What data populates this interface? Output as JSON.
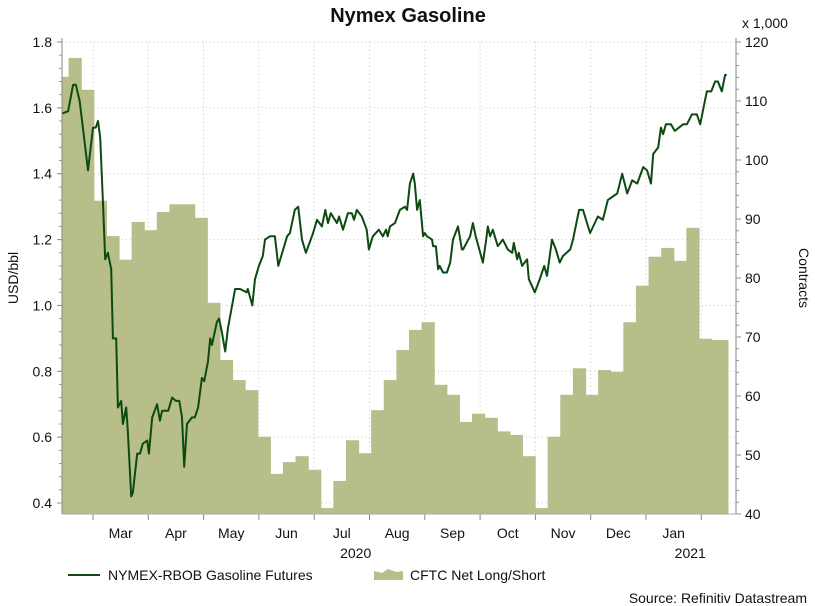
{
  "chart_data": {
    "type": "line+area",
    "title": "Nymex Gasoline",
    "left_axis": {
      "label": "USD/bbl",
      "ylim": [
        0.367,
        1.8
      ],
      "ticks": [
        0.4,
        0.6,
        0.8,
        1.0,
        1.2,
        1.4,
        1.6,
        1.8
      ],
      "tick_labels": [
        "0.4",
        "0.6",
        "0.8",
        "1.0",
        "1.2",
        "1.4",
        "1.6",
        "1.8"
      ]
    },
    "right_axis": {
      "label": "Contracts",
      "multiplier_label": "x 1,000",
      "ylim": [
        40,
        120
      ],
      "ticks": [
        40,
        50,
        60,
        70,
        80,
        90,
        100,
        110,
        120
      ],
      "tick_labels": [
        "40",
        "50",
        "60",
        "70",
        "80",
        "90",
        "100",
        "110",
        "120"
      ]
    },
    "x_axis": {
      "unit": "month index (1 = Mar 2020, 12 = Feb 2021)",
      "xlim": [
        0.44,
        12.48
      ],
      "month_ticks": [
        1,
        2,
        3,
        4,
        5,
        6,
        7,
        8,
        9,
        10,
        11,
        12
      ],
      "month_labels": [
        "Mar",
        "Apr",
        "May",
        "Jun",
        "Jul",
        "Aug",
        "Sep",
        "Oct",
        "Nov",
        "Dec",
        "Jan"
      ],
      "year_labels": [
        "2020",
        "2021"
      ]
    },
    "grid": true,
    "legend_position": "bottom-left",
    "series": [
      {
        "name": "NYMEX-RBOB Gasoline Futures",
        "axis": "left",
        "color": "#0d4a12",
        "points": [
          [
            0.4,
            1.58
          ],
          [
            0.55,
            1.59
          ],
          [
            0.64,
            1.67
          ],
          [
            0.69,
            1.67
          ],
          [
            0.76,
            1.62
          ],
          [
            0.91,
            1.41
          ],
          [
            1.0,
            1.54
          ],
          [
            1.05,
            1.54
          ],
          [
            1.09,
            1.56
          ],
          [
            1.13,
            1.51
          ],
          [
            1.18,
            1.31
          ],
          [
            1.22,
            1.14
          ],
          [
            1.27,
            1.16
          ],
          [
            1.33,
            1.11
          ],
          [
            1.36,
            0.9
          ],
          [
            1.42,
            0.9
          ],
          [
            1.45,
            0.69
          ],
          [
            1.51,
            0.71
          ],
          [
            1.54,
            0.64
          ],
          [
            1.6,
            0.69
          ],
          [
            1.63,
            0.62
          ],
          [
            1.69,
            0.42
          ],
          [
            1.72,
            0.43
          ],
          [
            1.8,
            0.55
          ],
          [
            1.85,
            0.55
          ],
          [
            1.9,
            0.58
          ],
          [
            1.98,
            0.59
          ],
          [
            2.01,
            0.55
          ],
          [
            2.07,
            0.66
          ],
          [
            2.16,
            0.7
          ],
          [
            2.21,
            0.65
          ],
          [
            2.25,
            0.68
          ],
          [
            2.36,
            0.68
          ],
          [
            2.43,
            0.72
          ],
          [
            2.5,
            0.71
          ],
          [
            2.56,
            0.71
          ],
          [
            2.61,
            0.66
          ],
          [
            2.65,
            0.51
          ],
          [
            2.7,
            0.64
          ],
          [
            2.79,
            0.66
          ],
          [
            2.84,
            0.66
          ],
          [
            2.9,
            0.69
          ],
          [
            2.97,
            0.78
          ],
          [
            3.01,
            0.77
          ],
          [
            3.08,
            0.83
          ],
          [
            3.12,
            0.9
          ],
          [
            3.15,
            0.88
          ],
          [
            3.24,
            0.95
          ],
          [
            3.28,
            0.96
          ],
          [
            3.33,
            0.92
          ],
          [
            3.39,
            0.86
          ],
          [
            3.44,
            0.93
          ],
          [
            3.57,
            1.05
          ],
          [
            3.66,
            1.05
          ],
          [
            3.78,
            1.04
          ],
          [
            3.8,
            1.05
          ],
          [
            3.88,
            1.0
          ],
          [
            3.93,
            1.08
          ],
          [
            4.0,
            1.12
          ],
          [
            4.07,
            1.15
          ],
          [
            4.11,
            1.2
          ],
          [
            4.2,
            1.21
          ],
          [
            4.29,
            1.21
          ],
          [
            4.35,
            1.12
          ],
          [
            4.51,
            1.21
          ],
          [
            4.56,
            1.22
          ],
          [
            4.65,
            1.29
          ],
          [
            4.71,
            1.3
          ],
          [
            4.78,
            1.2
          ],
          [
            4.85,
            1.16
          ],
          [
            4.98,
            1.22
          ],
          [
            5.05,
            1.26
          ],
          [
            5.14,
            1.24
          ],
          [
            5.2,
            1.29
          ],
          [
            5.25,
            1.25
          ],
          [
            5.3,
            1.28
          ],
          [
            5.41,
            1.25
          ],
          [
            5.45,
            1.27
          ],
          [
            5.52,
            1.23
          ],
          [
            5.61,
            1.28
          ],
          [
            5.68,
            1.28
          ],
          [
            5.72,
            1.26
          ],
          [
            5.77,
            1.29
          ],
          [
            5.86,
            1.27
          ],
          [
            5.95,
            1.23
          ],
          [
            5.99,
            1.17
          ],
          [
            6.06,
            1.21
          ],
          [
            6.17,
            1.23
          ],
          [
            6.24,
            1.21
          ],
          [
            6.3,
            1.23
          ],
          [
            6.33,
            1.21
          ],
          [
            6.37,
            1.24
          ],
          [
            6.46,
            1.25
          ],
          [
            6.55,
            1.29
          ],
          [
            6.64,
            1.3
          ],
          [
            6.68,
            1.29
          ],
          [
            6.73,
            1.37
          ],
          [
            6.79,
            1.4
          ],
          [
            6.82,
            1.37
          ],
          [
            6.86,
            1.29
          ],
          [
            6.91,
            1.32
          ],
          [
            6.97,
            1.21
          ],
          [
            7.0,
            1.22
          ],
          [
            7.04,
            1.21
          ],
          [
            7.13,
            1.2
          ],
          [
            7.15,
            1.18
          ],
          [
            7.2,
            1.18
          ],
          [
            7.24,
            1.11
          ],
          [
            7.27,
            1.12
          ],
          [
            7.33,
            1.1
          ],
          [
            7.4,
            1.1
          ],
          [
            7.46,
            1.13
          ],
          [
            7.51,
            1.2
          ],
          [
            7.6,
            1.24
          ],
          [
            7.67,
            1.17
          ],
          [
            7.69,
            1.17
          ],
          [
            7.82,
            1.21
          ],
          [
            7.87,
            1.25
          ],
          [
            7.92,
            1.21
          ],
          [
            8.05,
            1.13
          ],
          [
            8.11,
            1.2
          ],
          [
            8.14,
            1.24
          ],
          [
            8.18,
            1.21
          ],
          [
            8.23,
            1.23
          ],
          [
            8.32,
            1.18
          ],
          [
            8.41,
            1.2
          ],
          [
            8.5,
            1.17
          ],
          [
            8.58,
            1.16
          ],
          [
            8.61,
            1.19
          ],
          [
            8.67,
            1.14
          ],
          [
            8.7,
            1.16
          ],
          [
            8.76,
            1.12
          ],
          [
            8.85,
            1.14
          ],
          [
            8.88,
            1.08
          ],
          [
            8.99,
            1.04
          ],
          [
            9.08,
            1.08
          ],
          [
            9.16,
            1.12
          ],
          [
            9.21,
            1.09
          ],
          [
            9.3,
            1.2
          ],
          [
            9.37,
            1.17
          ],
          [
            9.44,
            1.13
          ],
          [
            9.5,
            1.15
          ],
          [
            9.63,
            1.17
          ],
          [
            9.68,
            1.2
          ],
          [
            9.79,
            1.29
          ],
          [
            9.86,
            1.29
          ],
          [
            9.99,
            1.22
          ],
          [
            10.13,
            1.27
          ],
          [
            10.22,
            1.26
          ],
          [
            10.31,
            1.32
          ],
          [
            10.48,
            1.34
          ],
          [
            10.57,
            1.4
          ],
          [
            10.66,
            1.34
          ],
          [
            10.75,
            1.38
          ],
          [
            10.84,
            1.37
          ],
          [
            10.95,
            1.42
          ],
          [
            11.02,
            1.41
          ],
          [
            11.09,
            1.37
          ],
          [
            11.13,
            1.46
          ],
          [
            11.22,
            1.48
          ],
          [
            11.27,
            1.54
          ],
          [
            11.31,
            1.52
          ],
          [
            11.36,
            1.55
          ],
          [
            11.45,
            1.55
          ],
          [
            11.52,
            1.53
          ],
          [
            11.67,
            1.55
          ],
          [
            11.74,
            1.55
          ],
          [
            11.83,
            1.58
          ],
          [
            11.92,
            1.58
          ],
          [
            11.98,
            1.55
          ],
          [
            12.1,
            1.65
          ],
          [
            12.18,
            1.65
          ],
          [
            12.25,
            1.68
          ],
          [
            12.3,
            1.68
          ],
          [
            12.37,
            1.65
          ],
          [
            12.43,
            1.7
          ],
          [
            12.46,
            1.7
          ]
        ]
      },
      {
        "name": "CFTC Net Long/Short",
        "axis": "right",
        "color": "#c5b682",
        "week_start": 0.33,
        "week_step": 0.228,
        "values": [
          114.1,
          117.3,
          111.9,
          93.1,
          87.1,
          83.1,
          89.5,
          88.1,
          91.2,
          92.5,
          92.5,
          90.2,
          75.8,
          66.1,
          62.7,
          61.0,
          53.1,
          46.8,
          48.8,
          49.8,
          47.5,
          41.0,
          45.6,
          52.5,
          50.3,
          57.6,
          62.7,
          67.8,
          71.2,
          72.5,
          61.9,
          60.2,
          55.6,
          57.0,
          56.3,
          54.0,
          53.4,
          49.8,
          41.0,
          53.1,
          60.2,
          64.7,
          60.2,
          64.4,
          64.1,
          72.5,
          78.7,
          83.6,
          85.1,
          82.9,
          88.5,
          69.7,
          69.5,
          69.5
        ]
      }
    ],
    "source": "Source: Refinitiv Datastream"
  }
}
